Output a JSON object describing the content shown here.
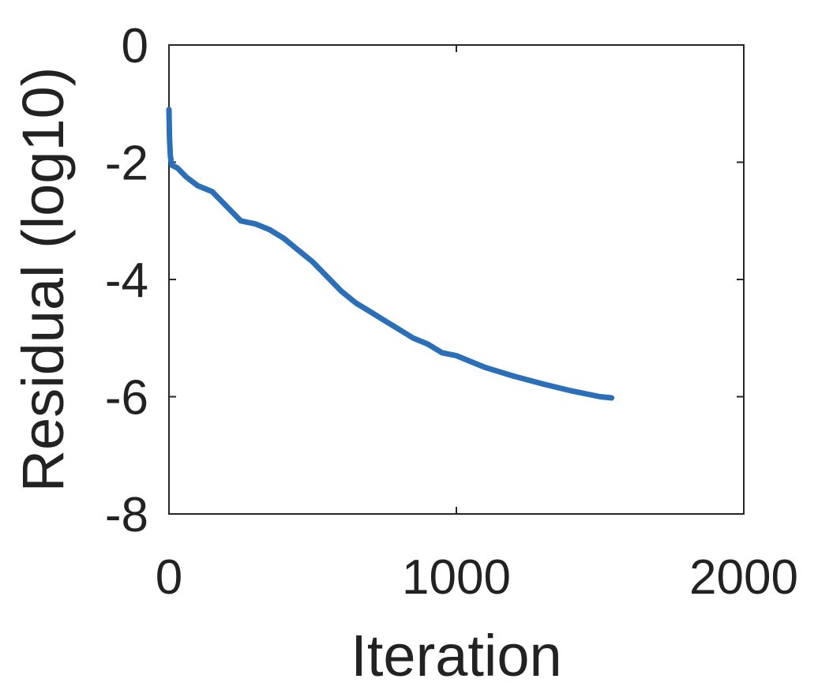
{
  "chart_data": {
    "type": "line",
    "title": "",
    "xlabel": "Iteration",
    "ylabel": "Residual (log10)",
    "xlim": [
      0,
      2000
    ],
    "ylim": [
      -8,
      0
    ],
    "xticks": [
      0,
      1000,
      2000
    ],
    "xtick_labels": [
      "0",
      "1000",
      "2000"
    ],
    "yticks": [
      0,
      -2,
      -4,
      -6,
      -8
    ],
    "ytick_labels": [
      "0",
      "-2",
      "-4",
      "-6",
      "-8"
    ],
    "grid": false,
    "legend": "none",
    "series": [
      {
        "color": "#2b6fb8",
        "x": [
          0,
          2,
          5,
          10,
          30,
          60,
          100,
          150,
          200,
          250,
          300,
          350,
          400,
          450,
          500,
          550,
          600,
          650,
          700,
          750,
          800,
          850,
          900,
          950,
          1000,
          1050,
          1100,
          1200,
          1300,
          1400,
          1500,
          1540
        ],
        "y": [
          -1.1,
          -1.6,
          -1.9,
          -2.05,
          -2.1,
          -2.25,
          -2.4,
          -2.5,
          -2.75,
          -3.0,
          -3.05,
          -3.15,
          -3.3,
          -3.5,
          -3.7,
          -3.95,
          -4.2,
          -4.4,
          -4.55,
          -4.7,
          -4.85,
          -5.0,
          -5.1,
          -5.25,
          -5.3,
          -5.4,
          -5.5,
          -5.65,
          -5.78,
          -5.9,
          -6.0,
          -6.02
        ]
      }
    ]
  }
}
